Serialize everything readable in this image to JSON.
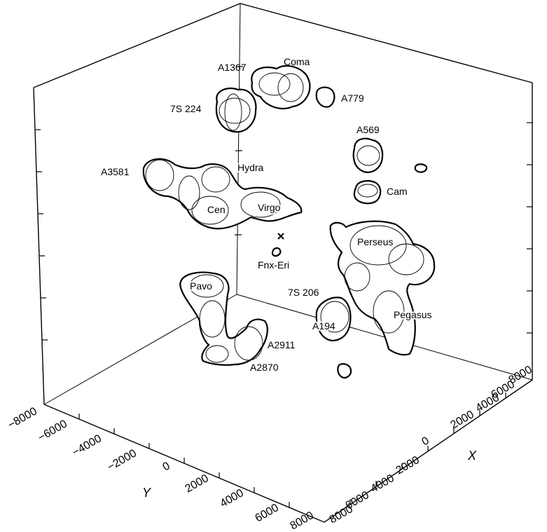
{
  "structures": {
    "coma": "Coma",
    "a1367": "A1367",
    "a779": "A779",
    "s224": "7S 224",
    "a569": "A569",
    "a3581": "A3581",
    "hydra": "Hydra",
    "cam": "Cam",
    "cen": "Cen",
    "virgo": "Virgo",
    "perseus": "Perseus",
    "fnx": "Fnx-Eri",
    "pavo": "Pavo",
    "s206": "7S 206",
    "a194": "A194",
    "pegasus": "Pegasus",
    "a2911": "A2911",
    "a2870": "A2870"
  },
  "axes": {
    "y_title": "Y",
    "x_title": "X",
    "y_ticks": [
      "−8000",
      "−6000",
      "−4000",
      "−2000",
      "0",
      "2000",
      "4000",
      "6000",
      "8000"
    ],
    "x_ticks": [
      "8000",
      "6000",
      "4000",
      "2000",
      "0",
      "2000",
      "4000",
      "6000",
      "8000"
    ]
  }
}
